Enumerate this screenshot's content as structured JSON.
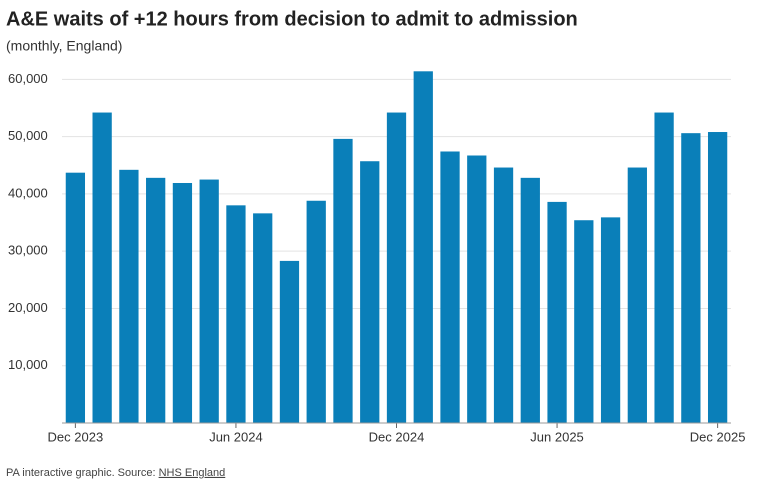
{
  "chart_data": {
    "type": "bar",
    "title": "A&E waits of +12 hours from decision to admit to admission",
    "subtitle": "(monthly, England)",
    "footer": "PA interactive graphic. Source:",
    "source": "NHS England",
    "categories": [
      "Dec 2023",
      null,
      null,
      null,
      null,
      null,
      "Jun 2024",
      null,
      null,
      null,
      null,
      null,
      "Dec 2024",
      null,
      null,
      null,
      null,
      null,
      "Jun 2025",
      null,
      null,
      null,
      null,
      null,
      "Dec 2025"
    ],
    "values": [
      43700,
      54200,
      44200,
      42800,
      41900,
      42500,
      38000,
      36600,
      28300,
      38800,
      49600,
      45700,
      54200,
      61400,
      47400,
      46700,
      44600,
      42800,
      38600,
      35400,
      35900,
      44600,
      54200,
      50600,
      50800
    ],
    "color": "#0a7fb9",
    "ylim": [
      0,
      62500
    ],
    "yticks": [
      {
        "value": 10000,
        "label": "10,000"
      },
      {
        "value": 20000,
        "label": "20,000"
      },
      {
        "value": 30000,
        "label": "30,000"
      },
      {
        "value": 40000,
        "label": "40,000"
      },
      {
        "value": 50000,
        "label": "50,000"
      },
      {
        "value": 60000,
        "label": "60,000"
      }
    ],
    "grid": true
  }
}
